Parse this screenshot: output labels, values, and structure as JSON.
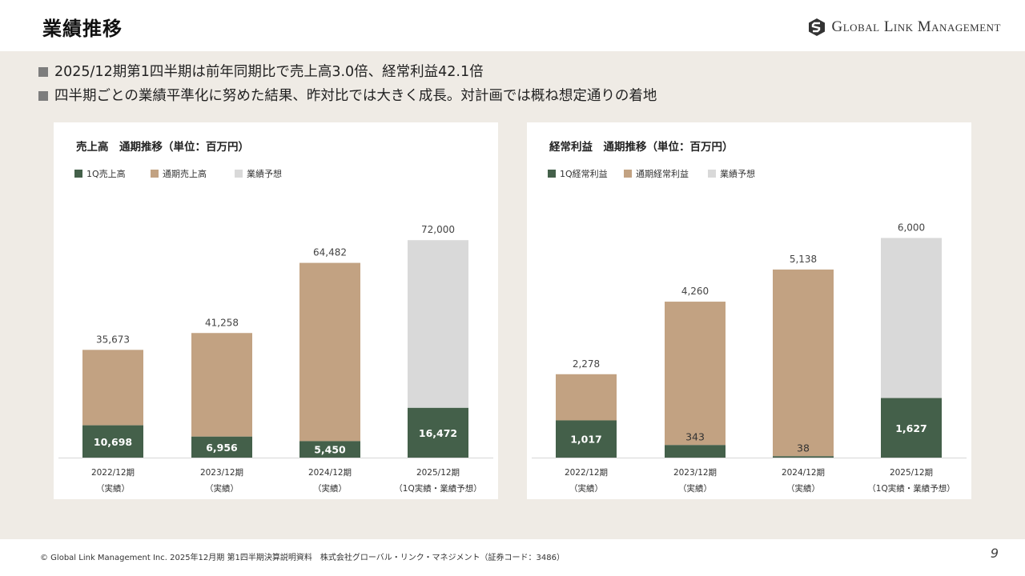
{
  "header": {
    "title": "業績推移",
    "logo_text": "Global Link Management"
  },
  "bullets": [
    "2025/12期第1四半期は前年同期比で売上高3.0倍、経常利益42.1倍",
    "四半期ごとの業績平準化に努めた結果、昨対比では大きく成長。対計画では概ね想定通りの着地"
  ],
  "colors": {
    "q1": "#44604a",
    "full": "#c2a282",
    "forecast": "#d9d9d9"
  },
  "chart_data": [
    {
      "type": "bar",
      "stacked": true,
      "title": "売上高　通期推移（単位：百万円）",
      "categories": [
        "2022/12期",
        "2023/12期",
        "2024/12期",
        "2025/12期"
      ],
      "category_sublabels": [
        "（実績）",
        "（実績）",
        "（実績）",
        "（1Q実績・業績予想）"
      ],
      "legend": [
        "1Q売上高",
        "通期売上高",
        "業績予想"
      ],
      "q1": [
        10698,
        6956,
        5450,
        16472
      ],
      "total": [
        35673,
        41258,
        64482,
        72000
      ],
      "q1_labels": [
        "10,698",
        "6,956",
        "5,450",
        "16,472"
      ],
      "total_labels": [
        "35,673",
        "41,258",
        "64,482",
        "72,000"
      ],
      "top_segment": [
        "full",
        "full",
        "full",
        "forecast"
      ],
      "ylim": [
        0,
        80000
      ]
    },
    {
      "type": "bar",
      "stacked": true,
      "title": "経常利益　通期推移（単位：百万円）",
      "categories": [
        "2022/12期",
        "2023/12期",
        "2024/12期",
        "2025/12期"
      ],
      "category_sublabels": [
        "（実績）",
        "（実績）",
        "（実績）",
        "（1Q実績・業績予想）"
      ],
      "legend": [
        "1Q経常利益",
        "通期経常利益",
        "業績予想"
      ],
      "q1": [
        1017,
        343,
        38,
        1627
      ],
      "total": [
        2278,
        4260,
        5138,
        6000
      ],
      "q1_labels": [
        "1,017",
        "343",
        "38",
        "1,627"
      ],
      "total_labels": [
        "2,278",
        "4,260",
        "5,138",
        "6,000"
      ],
      "top_segment": [
        "full",
        "full",
        "full",
        "forecast"
      ],
      "ylim": [
        0,
        6600
      ]
    }
  ],
  "footer": {
    "copyright": "© Global Link Management Inc. 2025年12月期 第1四半期決算説明資料　株式会社グローバル・リンク・マネジメント（証券コード：3486）",
    "page": "9"
  }
}
